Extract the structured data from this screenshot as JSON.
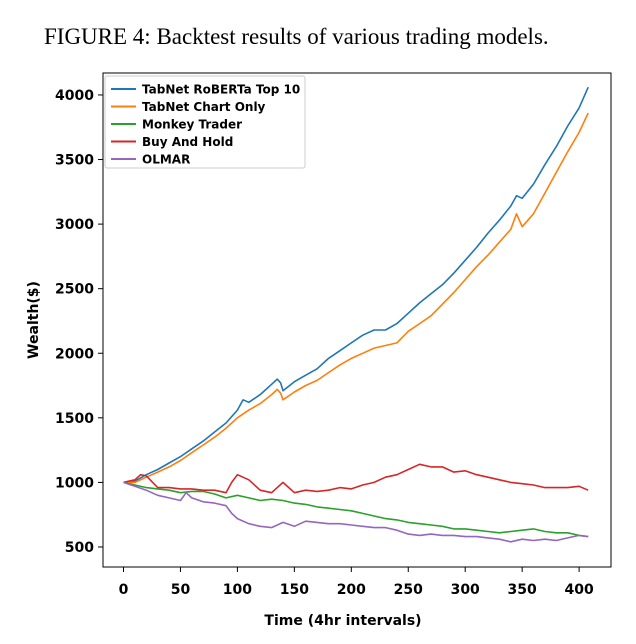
{
  "caption": "FIGURE 4: Backtest results of various trading models.",
  "chart_data": {
    "type": "line",
    "title": "",
    "xlabel": "Time (4hr intervals)",
    "ylabel": "Wealth($)",
    "xlim": [
      -18,
      428
    ],
    "ylim": [
      345,
      4170
    ],
    "xticks": [
      0,
      50,
      100,
      150,
      200,
      250,
      300,
      350,
      400
    ],
    "yticks": [
      500,
      1000,
      1500,
      2000,
      2500,
      3000,
      3500,
      4000
    ],
    "grid": false,
    "legend_position": "top-left",
    "series": [
      {
        "name": "TabNet RoBERTa Top 10",
        "color": "#1f77b4",
        "points": [
          [
            0,
            1000
          ],
          [
            10,
            1010
          ],
          [
            20,
            1060
          ],
          [
            30,
            1100
          ],
          [
            40,
            1150
          ],
          [
            50,
            1200
          ],
          [
            60,
            1260
          ],
          [
            70,
            1320
          ],
          [
            80,
            1390
          ],
          [
            90,
            1460
          ],
          [
            100,
            1560
          ],
          [
            105,
            1640
          ],
          [
            110,
            1620
          ],
          [
            120,
            1680
          ],
          [
            130,
            1760
          ],
          [
            135,
            1800
          ],
          [
            138,
            1770
          ],
          [
            140,
            1710
          ],
          [
            150,
            1780
          ],
          [
            160,
            1830
          ],
          [
            170,
            1880
          ],
          [
            180,
            1960
          ],
          [
            190,
            2020
          ],
          [
            200,
            2080
          ],
          [
            210,
            2140
          ],
          [
            220,
            2180
          ],
          [
            230,
            2180
          ],
          [
            240,
            2230
          ],
          [
            250,
            2310
          ],
          [
            260,
            2390
          ],
          [
            270,
            2460
          ],
          [
            280,
            2530
          ],
          [
            290,
            2620
          ],
          [
            300,
            2720
          ],
          [
            310,
            2820
          ],
          [
            320,
            2930
          ],
          [
            330,
            3030
          ],
          [
            340,
            3140
          ],
          [
            345,
            3220
          ],
          [
            350,
            3200
          ],
          [
            360,
            3310
          ],
          [
            370,
            3460
          ],
          [
            380,
            3600
          ],
          [
            390,
            3760
          ],
          [
            400,
            3900
          ],
          [
            408,
            4060
          ]
        ]
      },
      {
        "name": "TabNet Chart Only",
        "color": "#ff7f0e",
        "points": [
          [
            0,
            1000
          ],
          [
            10,
            1000
          ],
          [
            20,
            1040
          ],
          [
            30,
            1080
          ],
          [
            40,
            1120
          ],
          [
            50,
            1170
          ],
          [
            60,
            1230
          ],
          [
            70,
            1290
          ],
          [
            80,
            1350
          ],
          [
            90,
            1420
          ],
          [
            100,
            1500
          ],
          [
            110,
            1560
          ],
          [
            120,
            1610
          ],
          [
            130,
            1680
          ],
          [
            135,
            1720
          ],
          [
            138,
            1690
          ],
          [
            140,
            1640
          ],
          [
            150,
            1700
          ],
          [
            160,
            1750
          ],
          [
            170,
            1790
          ],
          [
            180,
            1850
          ],
          [
            190,
            1910
          ],
          [
            200,
            1960
          ],
          [
            210,
            2000
          ],
          [
            220,
            2040
          ],
          [
            230,
            2060
          ],
          [
            240,
            2080
          ],
          [
            250,
            2170
          ],
          [
            260,
            2230
          ],
          [
            270,
            2290
          ],
          [
            280,
            2380
          ],
          [
            290,
            2470
          ],
          [
            300,
            2570
          ],
          [
            310,
            2670
          ],
          [
            320,
            2760
          ],
          [
            330,
            2860
          ],
          [
            340,
            2960
          ],
          [
            345,
            3080
          ],
          [
            350,
            2980
          ],
          [
            360,
            3080
          ],
          [
            370,
            3240
          ],
          [
            380,
            3400
          ],
          [
            390,
            3560
          ],
          [
            400,
            3710
          ],
          [
            408,
            3860
          ]
        ]
      },
      {
        "name": "Monkey Trader",
        "color": "#2ca02c",
        "points": [
          [
            0,
            1000
          ],
          [
            10,
            980
          ],
          [
            20,
            960
          ],
          [
            30,
            950
          ],
          [
            40,
            940
          ],
          [
            50,
            920
          ],
          [
            60,
            930
          ],
          [
            70,
            930
          ],
          [
            80,
            910
          ],
          [
            90,
            880
          ],
          [
            100,
            900
          ],
          [
            110,
            880
          ],
          [
            120,
            860
          ],
          [
            130,
            870
          ],
          [
            140,
            860
          ],
          [
            150,
            840
          ],
          [
            160,
            830
          ],
          [
            170,
            810
          ],
          [
            180,
            800
          ],
          [
            190,
            790
          ],
          [
            200,
            780
          ],
          [
            210,
            760
          ],
          [
            220,
            740
          ],
          [
            230,
            720
          ],
          [
            240,
            710
          ],
          [
            250,
            690
          ],
          [
            260,
            680
          ],
          [
            270,
            670
          ],
          [
            280,
            660
          ],
          [
            290,
            640
          ],
          [
            300,
            640
          ],
          [
            310,
            630
          ],
          [
            320,
            620
          ],
          [
            330,
            610
          ],
          [
            340,
            620
          ],
          [
            350,
            630
          ],
          [
            360,
            640
          ],
          [
            370,
            620
          ],
          [
            380,
            610
          ],
          [
            390,
            610
          ],
          [
            400,
            590
          ],
          [
            408,
            580
          ]
        ]
      },
      {
        "name": "Buy And Hold",
        "color": "#d62728",
        "points": [
          [
            0,
            1000
          ],
          [
            10,
            1020
          ],
          [
            15,
            1060
          ],
          [
            20,
            1050
          ],
          [
            30,
            960
          ],
          [
            40,
            960
          ],
          [
            50,
            950
          ],
          [
            60,
            950
          ],
          [
            70,
            940
          ],
          [
            80,
            940
          ],
          [
            90,
            920
          ],
          [
            95,
            1000
          ],
          [
            100,
            1060
          ],
          [
            110,
            1020
          ],
          [
            120,
            940
          ],
          [
            130,
            920
          ],
          [
            140,
            1000
          ],
          [
            150,
            920
          ],
          [
            160,
            940
          ],
          [
            170,
            930
          ],
          [
            180,
            940
          ],
          [
            190,
            960
          ],
          [
            200,
            950
          ],
          [
            210,
            980
          ],
          [
            220,
            1000
          ],
          [
            230,
            1040
          ],
          [
            240,
            1060
          ],
          [
            250,
            1100
          ],
          [
            260,
            1140
          ],
          [
            270,
            1120
          ],
          [
            280,
            1120
          ],
          [
            290,
            1080
          ],
          [
            300,
            1090
          ],
          [
            310,
            1060
          ],
          [
            320,
            1040
          ],
          [
            330,
            1020
          ],
          [
            340,
            1000
          ],
          [
            350,
            990
          ],
          [
            360,
            980
          ],
          [
            370,
            960
          ],
          [
            380,
            960
          ],
          [
            390,
            960
          ],
          [
            400,
            970
          ],
          [
            408,
            940
          ]
        ]
      },
      {
        "name": "OLMAR",
        "color": "#9467bd",
        "points": [
          [
            0,
            1000
          ],
          [
            10,
            970
          ],
          [
            20,
            940
          ],
          [
            30,
            900
          ],
          [
            40,
            880
          ],
          [
            50,
            860
          ],
          [
            55,
            920
          ],
          [
            60,
            880
          ],
          [
            70,
            850
          ],
          [
            80,
            840
          ],
          [
            90,
            820
          ],
          [
            95,
            760
          ],
          [
            100,
            720
          ],
          [
            110,
            680
          ],
          [
            120,
            660
          ],
          [
            130,
            650
          ],
          [
            140,
            690
          ],
          [
            150,
            660
          ],
          [
            160,
            700
          ],
          [
            170,
            690
          ],
          [
            180,
            680
          ],
          [
            190,
            680
          ],
          [
            200,
            670
          ],
          [
            210,
            660
          ],
          [
            220,
            650
          ],
          [
            230,
            650
          ],
          [
            240,
            630
          ],
          [
            250,
            600
          ],
          [
            260,
            590
          ],
          [
            270,
            600
          ],
          [
            280,
            590
          ],
          [
            290,
            590
          ],
          [
            300,
            580
          ],
          [
            310,
            580
          ],
          [
            320,
            570
          ],
          [
            330,
            560
          ],
          [
            340,
            540
          ],
          [
            350,
            560
          ],
          [
            360,
            550
          ],
          [
            370,
            560
          ],
          [
            380,
            550
          ],
          [
            390,
            570
          ],
          [
            400,
            590
          ],
          [
            408,
            580
          ]
        ]
      }
    ]
  }
}
